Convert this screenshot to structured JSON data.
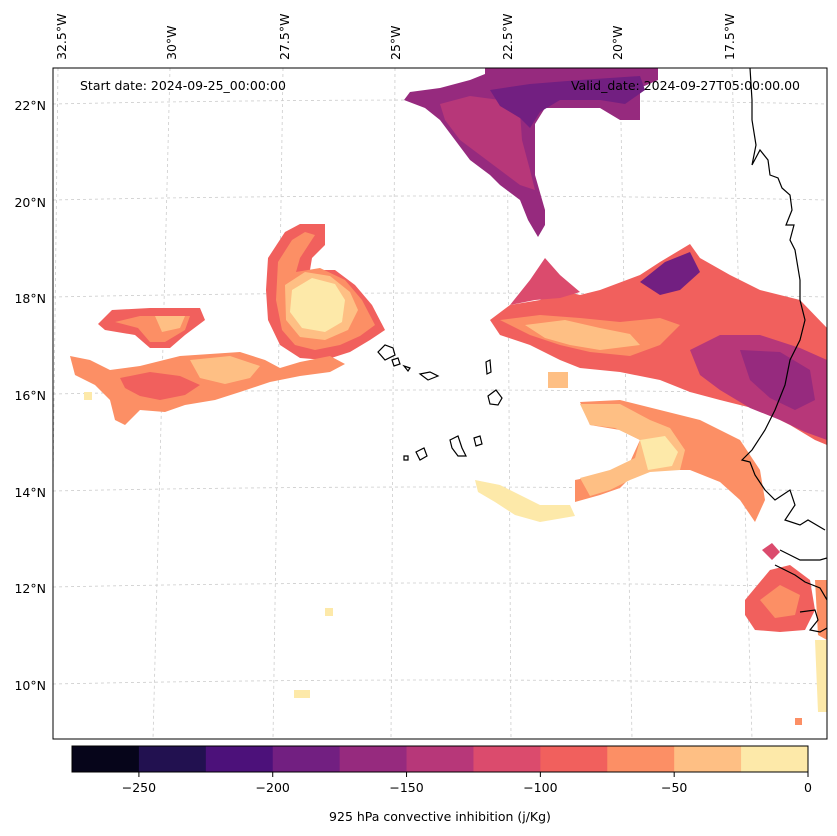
{
  "annotations": {
    "start": "Start date: 2024-09-25_00:00:00",
    "valid": "Valid_date: 2024-09-27T05:00:00.00"
  },
  "longitude_labels": [
    "32.5°W",
    "30°W",
    "27.5°W",
    "25°W",
    "22.5°W",
    "20°W",
    "17.5°W"
  ],
  "latitude_labels": [
    "22°N",
    "20°N",
    "18°N",
    "16°N",
    "14°N",
    "12°N",
    "10°N"
  ],
  "colorbar": {
    "label": "925 hPa convective inhibition (j/Kg)",
    "tick_labels": [
      "−250",
      "−200",
      "−150",
      "−100",
      "−50",
      "0"
    ],
    "levels": [
      -275,
      -250,
      -225,
      -200,
      -175,
      -150,
      -125,
      -100,
      -75,
      -50,
      -25,
      0
    ],
    "colors": [
      "#06051a",
      "#221150",
      "#4c117a",
      "#721f81",
      "#962a7e",
      "#b73779",
      "#db4b6d",
      "#f1605d",
      "#fc8f65",
      "#febf84",
      "#fde9a9"
    ]
  }
}
